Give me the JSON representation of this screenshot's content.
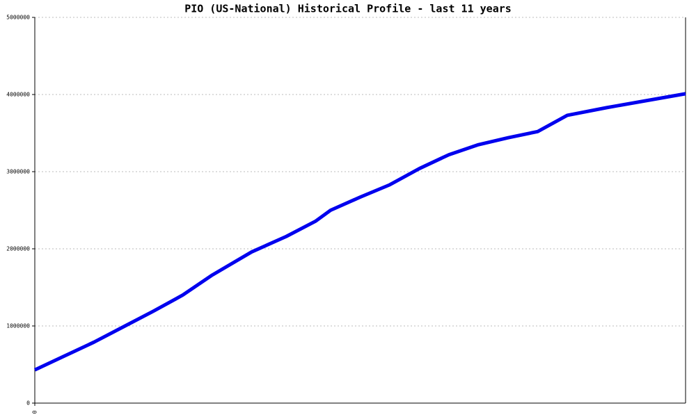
{
  "chart_data": {
    "type": "line",
    "title": "PIO (US-National) Historical Profile - last 11 years",
    "x": [
      0,
      6,
      12,
      18,
      24,
      30,
      36,
      44,
      51,
      57,
      60,
      66,
      72,
      78,
      84,
      90,
      96,
      102,
      108,
      116,
      132
    ],
    "series": [
      {
        "color": "#0000ee",
        "values": [
          430000,
          610000,
          790000,
          990000,
          1190000,
          1400000,
          1660000,
          1960000,
          2160000,
          2360000,
          2500000,
          2670000,
          2830000,
          3040000,
          3220000,
          3350000,
          3440000,
          3520000,
          3730000,
          3830000,
          4010000
        ]
      }
    ],
    "xlim": [
      0,
      132
    ],
    "xticks": [
      0
    ],
    "ylim": [
      0,
      5000000
    ],
    "yticks": [
      0,
      1000000,
      2000000,
      3000000,
      4000000,
      5000000
    ],
    "grid": true
  }
}
